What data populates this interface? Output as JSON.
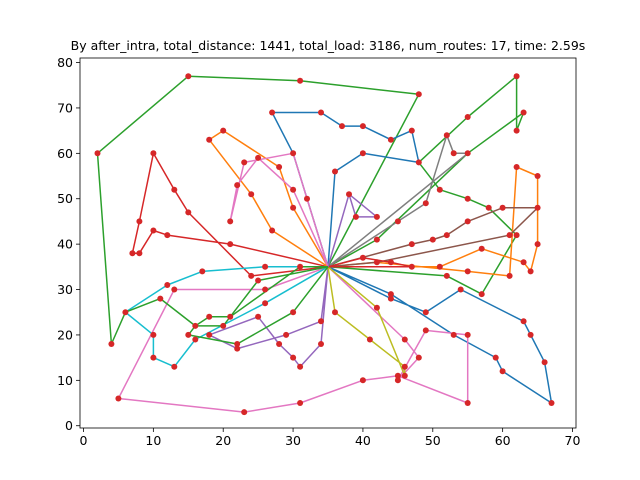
{
  "chart_data": {
    "type": "line",
    "title": "By after_intra, total_distance: 1441, total_load: 3186, num_routes: 17, time: 2.59s",
    "xlabel": "",
    "ylabel": "",
    "xlim": [
      -0.5,
      70.5
    ],
    "ylim": [
      -0.5,
      81
    ],
    "x_ticks": [
      0,
      10,
      20,
      30,
      40,
      50,
      60,
      70
    ],
    "y_ticks": [
      0,
      10,
      20,
      30,
      40,
      50,
      60,
      70,
      80
    ],
    "grid": false,
    "depot": [
      35,
      35
    ],
    "customer_color": "#d62728",
    "routes": [
      {
        "color": "#2ca02c",
        "points": [
          [
            35,
            35
          ],
          [
            52,
            33
          ],
          [
            57,
            29
          ],
          [
            62,
            42
          ],
          [
            58,
            48
          ],
          [
            55,
            50
          ],
          [
            51,
            52
          ],
          [
            48,
            58
          ],
          [
            55,
            68
          ],
          [
            62,
            77
          ],
          [
            62,
            65
          ],
          [
            63,
            69
          ],
          [
            55,
            60
          ],
          [
            42,
            41
          ],
          [
            35,
            35
          ]
        ]
      },
      {
        "color": "#ff7f0e",
        "points": [
          [
            35,
            35
          ],
          [
            51,
            35
          ],
          [
            57,
            39
          ],
          [
            63,
            36
          ],
          [
            64,
            34
          ],
          [
            65,
            40
          ],
          [
            65,
            55
          ],
          [
            62,
            57
          ],
          [
            61,
            33
          ],
          [
            55,
            34
          ],
          [
            42,
            36
          ],
          [
            35,
            35
          ]
        ]
      },
      {
        "color": "#1f77b4",
        "points": [
          [
            35,
            35
          ],
          [
            44,
            28
          ],
          [
            49,
            25
          ],
          [
            54,
            30
          ],
          [
            63,
            23
          ],
          [
            64,
            20
          ],
          [
            66,
            14
          ],
          [
            67,
            5
          ],
          [
            60,
            12
          ],
          [
            59,
            15
          ],
          [
            53,
            20
          ],
          [
            44,
            29
          ],
          [
            35,
            35
          ]
        ]
      },
      {
        "color": "#d62728",
        "points": [
          [
            35,
            35
          ],
          [
            21,
            40
          ],
          [
            12,
            42
          ],
          [
            10,
            43
          ],
          [
            8,
            38
          ],
          [
            7,
            38
          ],
          [
            8,
            45
          ],
          [
            10,
            60
          ],
          [
            13,
            52
          ],
          [
            15,
            47
          ],
          [
            24,
            33
          ],
          [
            35,
            35
          ]
        ]
      },
      {
        "color": "#9467bd",
        "points": [
          [
            35,
            35
          ],
          [
            34,
            23
          ],
          [
            29,
            20
          ],
          [
            22,
            17
          ],
          [
            18,
            20
          ],
          [
            25,
            24
          ],
          [
            28,
            18
          ],
          [
            30,
            15
          ],
          [
            31,
            13
          ],
          [
            34,
            18
          ],
          [
            35,
            35
          ]
        ]
      },
      {
        "color": "#8c564b",
        "points": [
          [
            35,
            35
          ],
          [
            47,
            40
          ],
          [
            50,
            41
          ],
          [
            52,
            42
          ],
          [
            55,
            45
          ],
          [
            60,
            48
          ],
          [
            65,
            48
          ],
          [
            61,
            42
          ],
          [
            42,
            36
          ],
          [
            35,
            35
          ]
        ]
      },
      {
        "color": "#e377c2",
        "points": [
          [
            35,
            35
          ],
          [
            26,
            30
          ],
          [
            13,
            30
          ],
          [
            5,
            6
          ],
          [
            23,
            3
          ],
          [
            31,
            5
          ],
          [
            40,
            10
          ],
          [
            45,
            11
          ],
          [
            55,
            5
          ],
          [
            55,
            20
          ],
          [
            49,
            21
          ],
          [
            45,
            10
          ],
          [
            48,
            15
          ],
          [
            46,
            19
          ],
          [
            35,
            35
          ]
        ]
      },
      {
        "color": "#7f7f7f",
        "points": [
          [
            35,
            35
          ],
          [
            45,
            45
          ],
          [
            49,
            49
          ],
          [
            52,
            64
          ],
          [
            53,
            60
          ],
          [
            55,
            60
          ],
          [
            35,
            35
          ]
        ]
      },
      {
        "color": "#bcbd22",
        "points": [
          [
            35,
            35
          ],
          [
            36,
            25
          ],
          [
            41,
            19
          ],
          [
            46,
            13
          ],
          [
            46,
            11
          ],
          [
            42,
            26
          ],
          [
            35,
            35
          ]
        ]
      },
      {
        "color": "#17becf",
        "points": [
          [
            35,
            35
          ],
          [
            26,
            35
          ],
          [
            17,
            34
          ],
          [
            12,
            31
          ],
          [
            6,
            25
          ],
          [
            10,
            20
          ],
          [
            10,
            15
          ],
          [
            13,
            13
          ],
          [
            16,
            19
          ],
          [
            26,
            27
          ],
          [
            35,
            35
          ]
        ]
      },
      {
        "color": "#2ca02c",
        "points": [
          [
            35,
            35
          ],
          [
            25,
            32
          ],
          [
            20,
            22
          ],
          [
            16,
            22
          ],
          [
            11,
            28
          ],
          [
            6,
            25
          ],
          [
            4,
            18
          ],
          [
            2,
            60
          ],
          [
            15,
            77
          ],
          [
            31,
            76
          ],
          [
            48,
            73
          ],
          [
            35,
            35
          ]
        ]
      },
      {
        "color": "#1f77b4",
        "points": [
          [
            35,
            35
          ],
          [
            30,
            60
          ],
          [
            27,
            69
          ],
          [
            34,
            69
          ],
          [
            37,
            66
          ],
          [
            40,
            66
          ],
          [
            44,
            63
          ],
          [
            47,
            65
          ],
          [
            48,
            58
          ],
          [
            40,
            60
          ],
          [
            36,
            56
          ],
          [
            35,
            35
          ]
        ]
      },
      {
        "color": "#ff7f0e",
        "points": [
          [
            35,
            35
          ],
          [
            27,
            43
          ],
          [
            24,
            51
          ],
          [
            18,
            63
          ],
          [
            20,
            65
          ],
          [
            28,
            57
          ],
          [
            30,
            48
          ],
          [
            35,
            35
          ]
        ]
      },
      {
        "color": "#e377c2",
        "points": [
          [
            35,
            35
          ],
          [
            30,
            52
          ],
          [
            25,
            59
          ],
          [
            22,
            53
          ],
          [
            21,
            45
          ],
          [
            23,
            58
          ],
          [
            30,
            60
          ],
          [
            32,
            50
          ],
          [
            35,
            35
          ]
        ]
      },
      {
        "color": "#d62728",
        "points": [
          [
            35,
            35
          ],
          [
            40,
            37
          ],
          [
            44,
            36
          ],
          [
            47,
            35
          ],
          [
            35,
            35
          ]
        ]
      },
      {
        "color": "#9467bd",
        "points": [
          [
            35,
            35
          ],
          [
            38,
            51
          ],
          [
            39,
            46
          ],
          [
            42,
            46
          ],
          [
            38,
            51
          ],
          [
            35,
            35
          ]
        ]
      },
      {
        "color": "#2ca02c",
        "points": [
          [
            35,
            35
          ],
          [
            31,
            35
          ],
          [
            21,
            24
          ],
          [
            18,
            24
          ],
          [
            16,
            22
          ],
          [
            15,
            20
          ],
          [
            22,
            18
          ],
          [
            30,
            25
          ],
          [
            35,
            35
          ]
        ]
      }
    ]
  }
}
